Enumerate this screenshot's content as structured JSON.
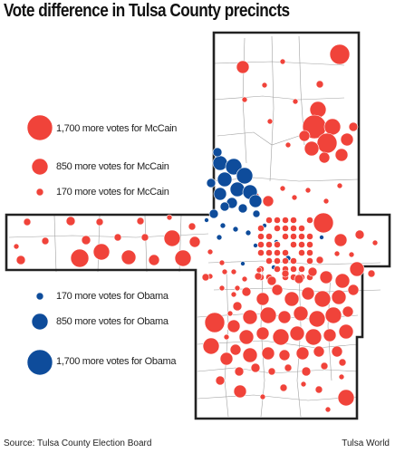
{
  "title": "Vote difference in Tulsa County precincts",
  "legend": {
    "mccain": [
      {
        "label": "1,700 more votes for McCain",
        "votes": 1700
      },
      {
        "label": "850 more votes for McCain",
        "votes": 850
      },
      {
        "label": "170 more votes for McCain",
        "votes": 170
      }
    ],
    "obama": [
      {
        "label": "170 more votes for Obama",
        "votes": 170
      },
      {
        "label": "850 more votes for Obama",
        "votes": 850
      },
      {
        "label": "1,700 more votes for Obama",
        "votes": 1700
      }
    ]
  },
  "colors": {
    "mccain": "#f0433a",
    "obama": "#0e4c9b",
    "boundary": "#222222",
    "precinct_lines": "#9a9a9a"
  },
  "source": "Source: Tulsa County Election Board",
  "credit": "Tulsa World"
}
